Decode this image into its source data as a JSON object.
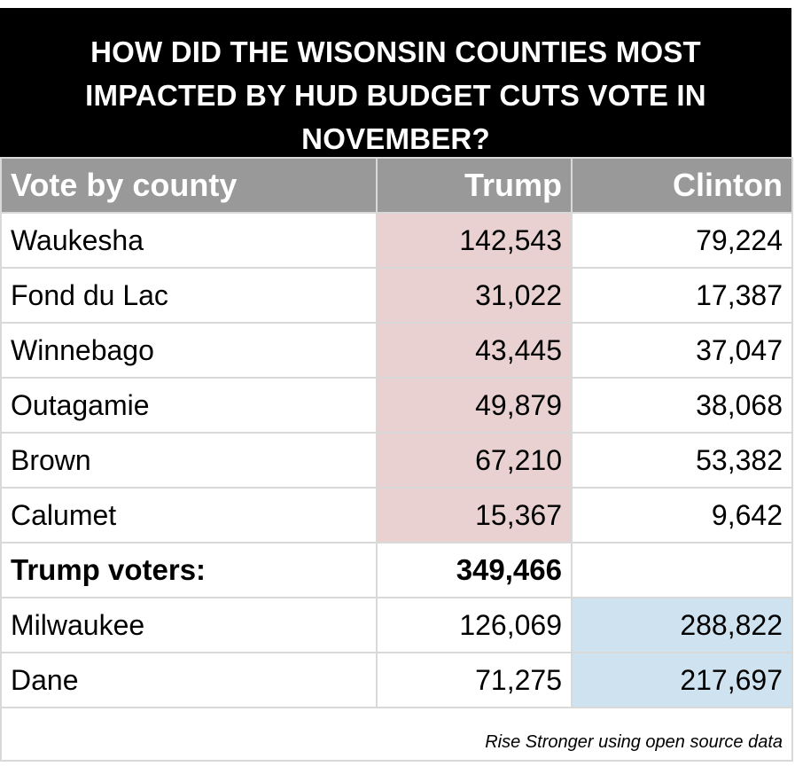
{
  "chart_data": {
    "type": "table",
    "title": "HOW DID THE WISONSIN COUNTIES MOST IMPACTED BY HUD BUDGET CUTS VOTE IN NOVEMBER?",
    "columns": [
      "Vote by county",
      "Trump",
      "Clinton"
    ],
    "rows": [
      {
        "county": "Waukesha",
        "trump": "142,543",
        "clinton": "79,224",
        "highlight": "trump"
      },
      {
        "county": "Fond du Lac",
        "trump": "31,022",
        "clinton": "17,387",
        "highlight": "trump"
      },
      {
        "county": "Winnebago",
        "trump": "43,445",
        "clinton": "37,047",
        "highlight": "trump"
      },
      {
        "county": "Outagamie",
        "trump": "49,879",
        "clinton": "38,068",
        "highlight": "trump"
      },
      {
        "county": "Brown",
        "trump": "67,210",
        "clinton": "53,382",
        "highlight": "trump"
      },
      {
        "county": "Calumet",
        "trump": "15,367",
        "clinton": "9,642",
        "highlight": "trump"
      }
    ],
    "total": {
      "label": "Trump voters:",
      "value": "349,466"
    },
    "other_rows": [
      {
        "county": "Milwaukee",
        "trump": "126,069",
        "clinton": "288,822",
        "highlight": "clinton"
      },
      {
        "county": "Dane",
        "trump": "71,275",
        "clinton": "217,697",
        "highlight": "clinton"
      }
    ],
    "source": "Rise Stronger using open source data",
    "colors": {
      "title_bg": "#000000",
      "header_bg": "#999999",
      "trump_highlight": "#ead1d1",
      "clinton_highlight": "#cfe2ef",
      "grid": "#d9d9d9"
    }
  }
}
